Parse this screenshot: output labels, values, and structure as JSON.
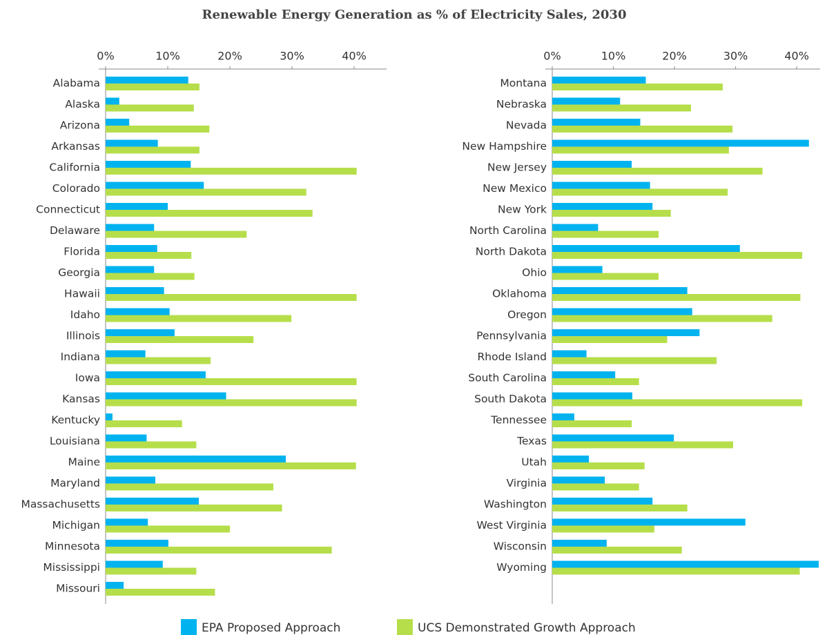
{
  "chart_data": [
    {
      "type": "bar",
      "orientation": "horizontal",
      "title": "Renewable Energy Generation as % of Electricity Sales, 2030",
      "categories": [
        "Alabama",
        "Alaska",
        "Arizona",
        "Arkansas",
        "California",
        "Colorado",
        "Connecticut",
        "Delaware",
        "Florida",
        "Georgia",
        "Hawaii",
        "Idaho",
        "Illinois",
        "Indiana",
        "Iowa",
        "Kansas",
        "Kentucky",
        "Louisiana",
        "Maine",
        "Maryland",
        "Massachusetts",
        "Michigan",
        "Minnesota",
        "Mississippi",
        "Missouri"
      ],
      "series": [
        {
          "name": "EPA Proposed Approach",
          "color": "#00b3ef",
          "values": [
            13.3,
            2.2,
            3.8,
            8.4,
            13.7,
            15.8,
            10.0,
            7.8,
            8.3,
            7.8,
            9.4,
            10.3,
            11.1,
            6.4,
            16.1,
            19.4,
            1.1,
            6.6,
            29.0,
            8.0,
            15.0,
            6.8,
            10.1,
            9.2,
            2.9
          ]
        },
        {
          "name": "UCS Demonstrated Growth Approach",
          "color": "#b6de4b",
          "values": [
            15.1,
            14.2,
            16.7,
            15.1,
            40.4,
            32.3,
            33.3,
            22.7,
            13.8,
            14.3,
            40.4,
            29.9,
            23.8,
            16.9,
            40.4,
            40.4,
            12.3,
            14.6,
            40.3,
            27.0,
            28.4,
            20.0,
            36.4,
            14.6,
            17.6
          ]
        }
      ],
      "xlim": [
        0,
        45
      ],
      "xticks": [
        {
          "value": 0,
          "label": "0%"
        },
        {
          "value": 10,
          "label": "10%"
        },
        {
          "value": 20,
          "label": "20%"
        },
        {
          "value": 30,
          "label": "30%"
        },
        {
          "value": 40,
          "label": "40%"
        }
      ],
      "legend": "bottom"
    },
    {
      "type": "bar",
      "orientation": "horizontal",
      "categories": [
        "Montana",
        "Nebraska",
        "Nevada",
        "New Hampshire",
        "New Jersey",
        "New Mexico",
        "New York",
        "North Carolina",
        "North Dakota",
        "Ohio",
        "Oklahoma",
        "Oregon",
        "Pennsylvania",
        "Rhode Island",
        "South Carolina",
        "South Dakota",
        "Tennessee",
        "Texas",
        "Utah",
        "Virginia",
        "Washington",
        "West Virginia",
        "Wisconsin",
        "Wyoming"
      ],
      "series": [
        {
          "name": "EPA Proposed Approach",
          "color": "#00b3ef",
          "values": [
            15.3,
            11.1,
            14.4,
            42.0,
            13.0,
            16.0,
            16.4,
            7.5,
            30.7,
            8.2,
            22.1,
            22.9,
            24.1,
            5.6,
            10.3,
            13.1,
            3.6,
            19.9,
            6.0,
            8.6,
            16.4,
            31.6,
            8.9,
            43.6
          ]
        },
        {
          "name": "UCS Demonstrated Growth Approach",
          "color": "#b6de4b",
          "values": [
            27.9,
            22.7,
            29.5,
            28.9,
            34.4,
            28.7,
            19.4,
            17.4,
            40.9,
            17.4,
            40.6,
            36.0,
            18.8,
            26.9,
            14.2,
            40.9,
            13.0,
            29.6,
            15.1,
            14.2,
            22.1,
            16.7,
            21.2,
            40.5
          ]
        }
      ],
      "xlim": [
        0,
        43.6
      ],
      "xticks": [
        {
          "value": 0,
          "label": "0%"
        },
        {
          "value": 10,
          "label": "10%"
        },
        {
          "value": 20,
          "label": "20%"
        },
        {
          "value": 30,
          "label": "30%"
        },
        {
          "value": 40,
          "label": "40%"
        }
      ]
    }
  ]
}
